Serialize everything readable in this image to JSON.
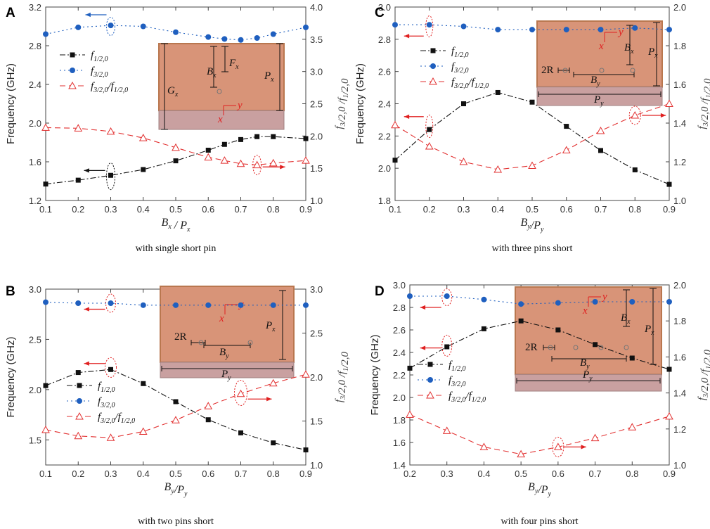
{
  "chart_data": [
    {
      "panel": "A",
      "type": "line",
      "caption": "with single short pin",
      "xlabel": "B_x / P_x",
      "ylabel": "Frequency (GHz)",
      "y2label": "f_3/2,0 /f_1/2,0",
      "xlim": [
        0.1,
        0.9
      ],
      "ylim": [
        1.2,
        3.2
      ],
      "y2lim": [
        1.0,
        4.0
      ],
      "xticks": [
        "0.1",
        "0.2",
        "0.3",
        "0.4",
        "0.5",
        "0.6",
        "0.7",
        "0.8",
        "0.9"
      ],
      "yticks": [
        "1.2",
        "1.6",
        "2.0",
        "2.4",
        "2.8",
        "3.2"
      ],
      "y2ticks": [
        "1.0",
        "1.5",
        "2.0",
        "2.5",
        "3.0",
        "3.5",
        "4.0"
      ],
      "series": [
        {
          "name": "f1/2,0",
          "axis": "left",
          "x": [
            0.1,
            0.2,
            0.3,
            0.4,
            0.5,
            0.6,
            0.65,
            0.7,
            0.75,
            0.8,
            0.9
          ],
          "values": [
            1.37,
            1.41,
            1.46,
            1.52,
            1.61,
            1.72,
            1.78,
            1.83,
            1.86,
            1.86,
            1.84
          ]
        },
        {
          "name": "f3/2,0",
          "axis": "left",
          "x": [
            0.1,
            0.2,
            0.3,
            0.4,
            0.5,
            0.6,
            0.65,
            0.7,
            0.75,
            0.8,
            0.9
          ],
          "values": [
            2.92,
            2.99,
            3.01,
            3.0,
            2.94,
            2.89,
            2.87,
            2.86,
            2.88,
            2.92,
            2.99
          ]
        },
        {
          "name": "f3/2,0/f1/2,0",
          "axis": "right",
          "x": [
            0.1,
            0.2,
            0.3,
            0.4,
            0.5,
            0.6,
            0.65,
            0.7,
            0.75,
            0.8,
            0.9
          ],
          "values": [
            2.13,
            2.12,
            2.07,
            1.97,
            1.82,
            1.67,
            1.62,
            1.57,
            1.55,
            1.58,
            1.62
          ]
        }
      ],
      "inset_labels": [
        "B",
        "x",
        "F",
        "x",
        "G",
        "x",
        "P",
        "x",
        "y",
        "x"
      ]
    },
    {
      "panel": "B",
      "type": "line",
      "caption": "with two pins short",
      "xlabel": "B_y/P_y",
      "ylabel": "Frequency (GHz)",
      "y2label": "f_3/2,0 /f_1/2,0",
      "xlim": [
        0.1,
        0.9
      ],
      "ylim": [
        1.25,
        3.0
      ],
      "y2lim": [
        1.0,
        3.0
      ],
      "xticks": [
        "0.1",
        "0.2",
        "0.3",
        "0.4",
        "0.5",
        "0.6",
        "0.7",
        "0.8",
        "0.9"
      ],
      "yticks": [
        "1.5",
        "2.0",
        "2.5",
        "3.0"
      ],
      "y2ticks": [
        "1.0",
        "1.5",
        "2.0",
        "2.5",
        "3.0"
      ],
      "series": [
        {
          "name": "f1/2,0",
          "axis": "left",
          "x": [
            0.1,
            0.2,
            0.3,
            0.4,
            0.5,
            0.6,
            0.7,
            0.8,
            0.9
          ],
          "values": [
            2.04,
            2.17,
            2.2,
            2.06,
            1.88,
            1.7,
            1.57,
            1.47,
            1.4
          ]
        },
        {
          "name": "f3/2,0",
          "axis": "left",
          "x": [
            0.1,
            0.2,
            0.3,
            0.4,
            0.5,
            0.6,
            0.7,
            0.8,
            0.9
          ],
          "values": [
            2.87,
            2.86,
            2.86,
            2.84,
            2.84,
            2.84,
            2.84,
            2.84,
            2.84
          ]
        },
        {
          "name": "f3/2,0/f1/2,0",
          "axis": "right",
          "x": [
            0.1,
            0.2,
            0.3,
            0.4,
            0.5,
            0.6,
            0.7,
            0.8,
            0.9
          ],
          "values": [
            1.4,
            1.33,
            1.31,
            1.38,
            1.51,
            1.67,
            1.81,
            1.93,
            2.03
          ]
        }
      ],
      "inset_labels": [
        "y",
        "x",
        "2R",
        "B",
        "y",
        "P",
        "x",
        "P",
        "y"
      ]
    },
    {
      "panel": "C",
      "type": "line",
      "caption": "with three pins short",
      "xlabel": "B_y/P_y",
      "ylabel": "Frequency (GHz)",
      "y2label": "f_3/2,0 /f_1/2,0",
      "xlim": [
        0.1,
        0.9
      ],
      "ylim": [
        1.8,
        3.0
      ],
      "y2lim": [
        1.0,
        2.0
      ],
      "xticks": [
        "0.1",
        "0.2",
        "0.3",
        "0.4",
        "0.5",
        "0.6",
        "0.7",
        "0.8",
        "0.9"
      ],
      "yticks": [
        "1.8",
        "2.0",
        "2.2",
        "2.4",
        "2.6",
        "2.8",
        "3.0"
      ],
      "y2ticks": [
        "1.0",
        "1.2",
        "1.4",
        "1.6",
        "1.8",
        "2.0"
      ],
      "series": [
        {
          "name": "f1/2,0",
          "axis": "left",
          "x": [
            0.1,
            0.2,
            0.3,
            0.4,
            0.5,
            0.6,
            0.7,
            0.8,
            0.9
          ],
          "values": [
            2.05,
            2.24,
            2.4,
            2.47,
            2.41,
            2.26,
            2.11,
            1.99,
            1.9
          ]
        },
        {
          "name": "f3/2,0",
          "axis": "left",
          "x": [
            0.1,
            0.2,
            0.3,
            0.4,
            0.5,
            0.6,
            0.7,
            0.8,
            0.9
          ],
          "values": [
            2.89,
            2.89,
            2.88,
            2.86,
            2.86,
            2.86,
            2.86,
            2.87,
            2.86
          ]
        },
        {
          "name": "f3/2,0/f1/2,0",
          "axis": "right",
          "x": [
            0.1,
            0.2,
            0.3,
            0.4,
            0.5,
            0.6,
            0.7,
            0.8,
            0.9
          ],
          "values": [
            1.39,
            1.28,
            1.2,
            1.16,
            1.18,
            1.26,
            1.36,
            1.44,
            1.5
          ]
        }
      ],
      "inset_labels": [
        "y",
        "x",
        "B",
        "x",
        "P",
        "x",
        "2R",
        "B",
        "y",
        "P",
        "y"
      ]
    },
    {
      "panel": "D",
      "type": "line",
      "caption": "with four pins short",
      "xlabel": "B_y/P_y",
      "ylabel": "Frequency (GHz)",
      "y2label": "f_3/2,0 /f_1/2,0",
      "xlim": [
        0.2,
        0.9
      ],
      "ylim": [
        1.4,
        3.0
      ],
      "y2lim": [
        1.0,
        2.0
      ],
      "xticks": [
        "0.2",
        "0.3",
        "0.4",
        "0.5",
        "0.6",
        "0.7",
        "0.8",
        "0.9"
      ],
      "yticks": [
        "1.4",
        "1.6",
        "1.8",
        "2.0",
        "2.2",
        "2.4",
        "2.6",
        "2.8",
        "3.0"
      ],
      "y2ticks": [
        "1.0",
        "1.2",
        "1.4",
        "1.6",
        "1.8",
        "2.0"
      ],
      "series": [
        {
          "name": "f1/2,0",
          "axis": "left",
          "x": [
            0.2,
            0.3,
            0.4,
            0.5,
            0.6,
            0.7,
            0.8,
            0.9
          ],
          "values": [
            2.26,
            2.45,
            2.61,
            2.68,
            2.6,
            2.47,
            2.35,
            2.25
          ]
        },
        {
          "name": "f3/2,0",
          "axis": "left",
          "x": [
            0.2,
            0.3,
            0.4,
            0.5,
            0.6,
            0.7,
            0.8,
            0.9
          ],
          "values": [
            2.9,
            2.9,
            2.87,
            2.83,
            2.84,
            2.85,
            2.85,
            2.85
          ]
        },
        {
          "name": "f3/2,0/f1/2,0",
          "axis": "right",
          "x": [
            0.2,
            0.3,
            0.4,
            0.5,
            0.6,
            0.7,
            0.8,
            0.9
          ],
          "values": [
            1.28,
            1.19,
            1.1,
            1.06,
            1.1,
            1.15,
            1.21,
            1.27
          ]
        }
      ],
      "inset_labels": [
        "y",
        "x",
        "B",
        "x",
        "P",
        "x",
        "2R",
        "B",
        "y",
        "P",
        "y"
      ]
    }
  ],
  "legend": {
    "f1": {
      "base": "f",
      "sub": "1/2,0"
    },
    "f3": {
      "base": "f",
      "sub": "3/2,0"
    },
    "ratio": {
      "base1": "f",
      "sub1": "3/2,0",
      "slash": "/",
      "base2": "f",
      "sub2": "1/2,0"
    }
  },
  "colors": {
    "f1": "#111111",
    "f3": "#1f5fbf",
    "ratio": "#e23030",
    "inset_top": "#d89478",
    "inset_bottom": "#c9a0a0",
    "inset_border": "#b9774f",
    "arrow": "#e02020"
  }
}
